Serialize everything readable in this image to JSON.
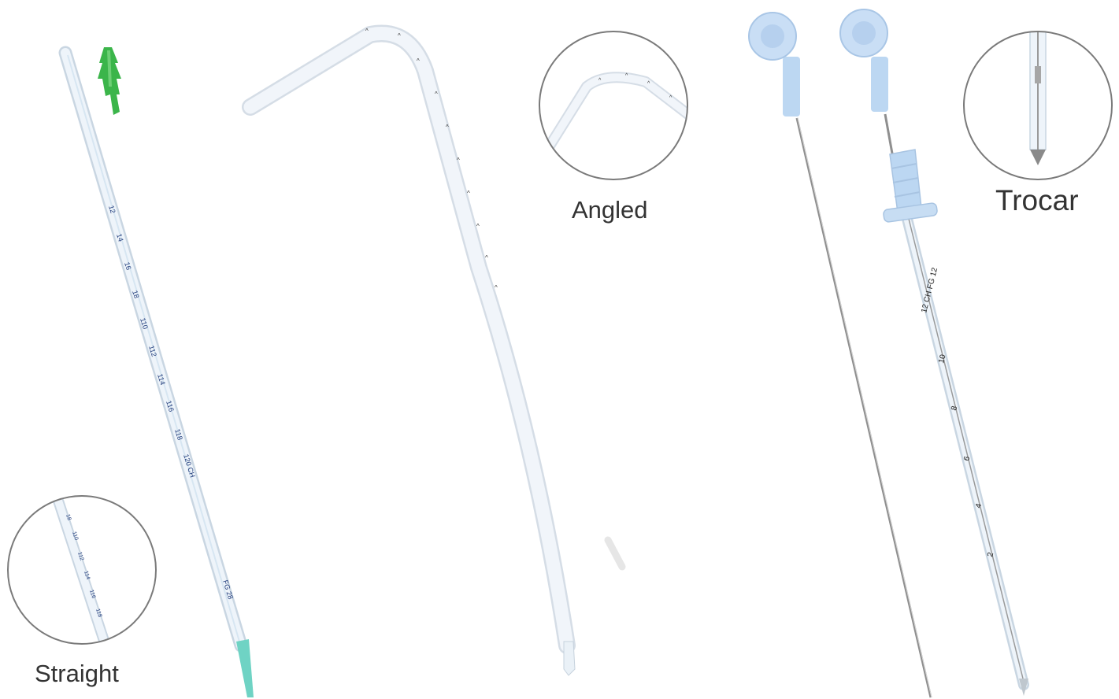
{
  "labels": {
    "straight": "Straight",
    "angled": "Angled",
    "trocar": "Trocar"
  },
  "printed_marks": {
    "straight_tube": [
      "12",
      "14",
      "16",
      "18",
      "110",
      "112",
      "114",
      "116",
      "118",
      "120 CH",
      "FG 28"
    ],
    "trocar_tube": [
      "12 CH FG 12",
      "10",
      "8",
      "6",
      "4",
      "2"
    ]
  },
  "colors": {
    "background": "#ffffff",
    "tube": "#e8f0f7",
    "connector": "#3bb54a",
    "tip": "#6fd3c4",
    "handle": "#bcd7f2",
    "needle": "#9a9a9a",
    "circle_outline": "#7a7a7a",
    "marking_text": "#1f3a7a",
    "label_text": "#333333"
  }
}
